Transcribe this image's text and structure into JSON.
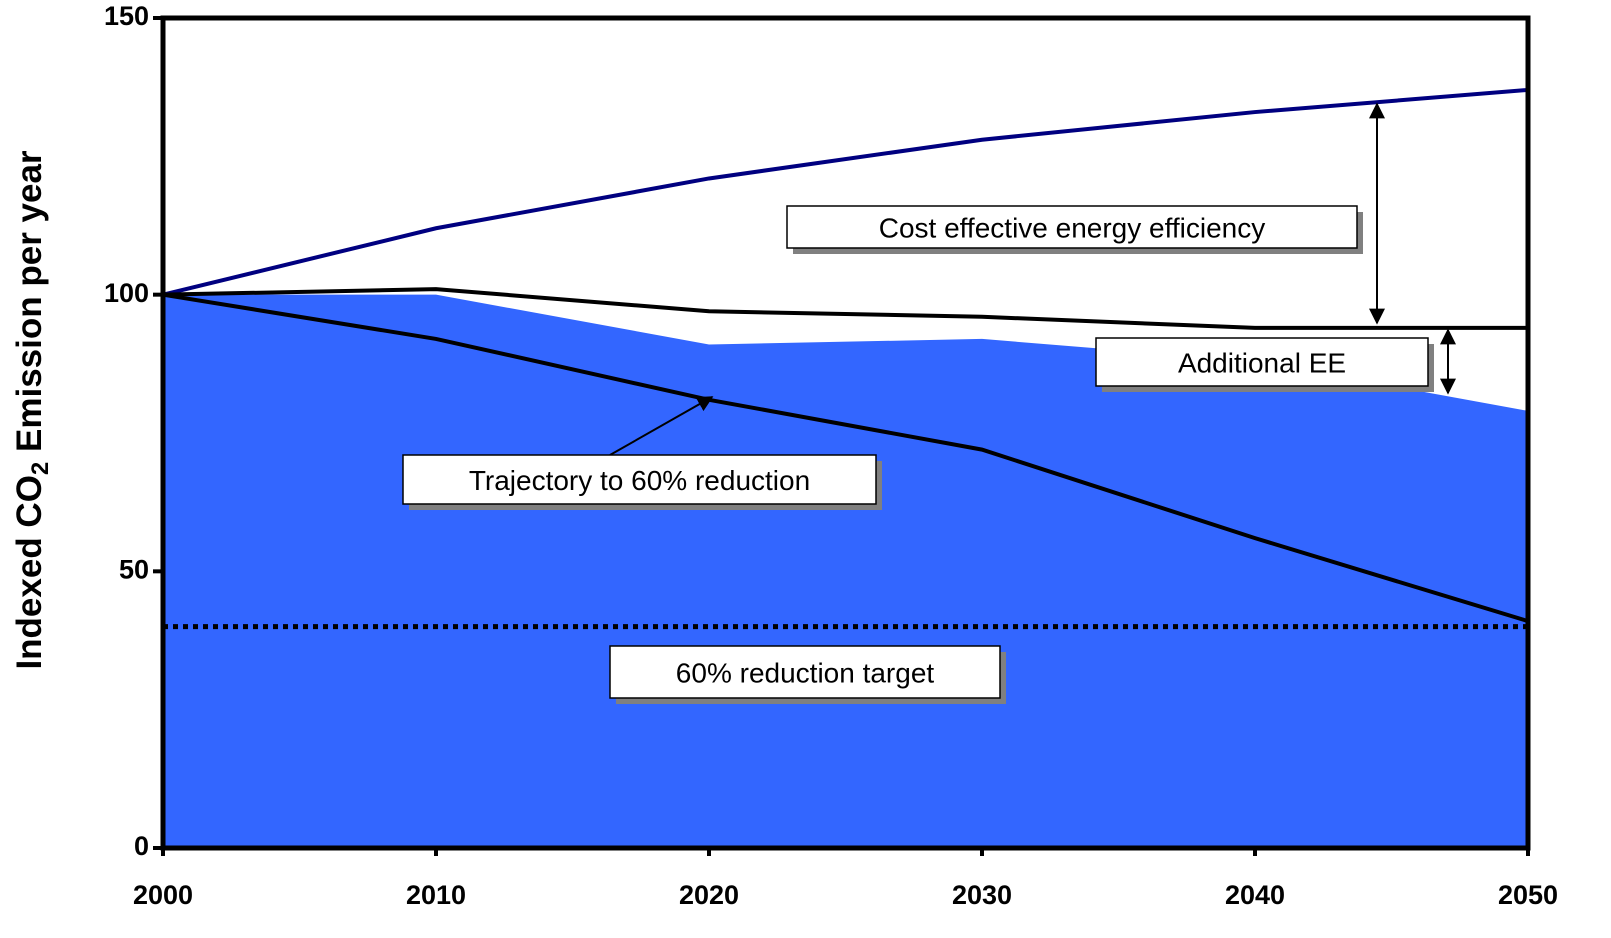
{
  "chart_data": {
    "type": "line",
    "ylabel": [
      "Indexed CO",
      "2",
      " Emission per year"
    ],
    "x": [
      2000,
      2010,
      2020,
      2030,
      2040,
      2050
    ],
    "xlim": [
      2000,
      2050
    ],
    "xticks": [
      2000,
      2010,
      2020,
      2030,
      2040,
      2050
    ],
    "ylim": [
      0,
      150
    ],
    "yticks": [
      0,
      50,
      100,
      150
    ],
    "series": [
      {
        "kind": "area",
        "color": "#3366ff",
        "values": [
          100,
          100,
          91,
          92,
          88,
          79
        ]
      },
      {
        "kind": "line",
        "color": "#000080",
        "values": [
          100,
          112,
          121,
          128,
          133,
          137
        ]
      },
      {
        "kind": "line",
        "color": "#000000",
        "values": [
          100,
          101,
          97,
          96,
          94,
          94
        ]
      },
      {
        "kind": "line",
        "color": "#000000",
        "values": [
          100,
          92,
          81,
          72,
          56,
          41
        ]
      }
    ],
    "target": 40,
    "annotations": [
      "Cost effective energy efficiency",
      "Additional EE",
      "Trajectory to 60% reduction",
      "60% reduction target"
    ]
  }
}
